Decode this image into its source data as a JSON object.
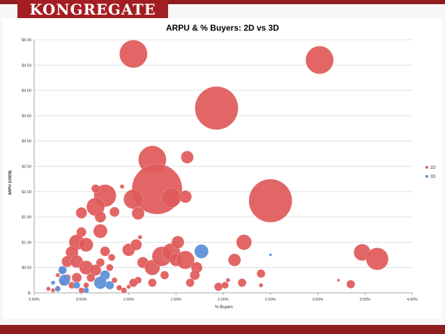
{
  "brand": {
    "logo_text": "KONGREGATE",
    "accent": "#a31e22"
  },
  "chart_data": {
    "type": "bubble",
    "title": "ARPU & % Buyers: 2D vs 3D",
    "xlabel": "% Buyers",
    "ylabel": "ARPU (USD$)",
    "xlim": [
      0,
      4
    ],
    "ylim": [
      0,
      5
    ],
    "grid": true,
    "legend_position": "right",
    "x_ticks": [
      "0.00%",
      "0.50%",
      "1.00%",
      "1.50%",
      "2.00%",
      "2.50%",
      "3.00%",
      "3.50%",
      "4.00%"
    ],
    "y_ticks": [
      "$-",
      "$0.50",
      "$1.00",
      "$1.50",
      "$2.00",
      "$2.50",
      "$3.00",
      "$3.50",
      "$4.00",
      "$4.50",
      "$5.00"
    ],
    "series": [
      {
        "name": "2D",
        "color": "#e05a5a",
        "points": [
          {
            "x": 1.05,
            "y": 4.72,
            "s": 20
          },
          {
            "x": 3.02,
            "y": 4.6,
            "s": 20
          },
          {
            "x": 1.93,
            "y": 3.65,
            "s": 31
          },
          {
            "x": 1.25,
            "y": 2.63,
            "s": 20
          },
          {
            "x": 1.62,
            "y": 2.68,
            "s": 9
          },
          {
            "x": 1.3,
            "y": 2.05,
            "s": 36
          },
          {
            "x": 2.5,
            "y": 1.82,
            "s": 31
          },
          {
            "x": 0.75,
            "y": 1.92,
            "s": 16
          },
          {
            "x": 1.05,
            "y": 1.85,
            "s": 14
          },
          {
            "x": 1.45,
            "y": 1.88,
            "s": 14
          },
          {
            "x": 1.6,
            "y": 1.9,
            "s": 9
          },
          {
            "x": 0.65,
            "y": 1.7,
            "s": 13
          },
          {
            "x": 0.7,
            "y": 1.5,
            "s": 8
          },
          {
            "x": 0.5,
            "y": 1.58,
            "s": 8
          },
          {
            "x": 0.85,
            "y": 1.6,
            "s": 7
          },
          {
            "x": 1.1,
            "y": 1.57,
            "s": 9
          },
          {
            "x": 0.65,
            "y": 2.06,
            "s": 6
          },
          {
            "x": 0.93,
            "y": 2.1,
            "s": 3
          },
          {
            "x": 0.7,
            "y": 1.22,
            "s": 10
          },
          {
            "x": 0.5,
            "y": 1.2,
            "s": 7
          },
          {
            "x": 0.45,
            "y": 1.0,
            "s": 11
          },
          {
            "x": 0.55,
            "y": 0.95,
            "s": 10
          },
          {
            "x": 0.4,
            "y": 0.8,
            "s": 9
          },
          {
            "x": 0.35,
            "y": 0.62,
            "s": 8
          },
          {
            "x": 0.45,
            "y": 0.62,
            "s": 9
          },
          {
            "x": 0.55,
            "y": 0.5,
            "s": 10
          },
          {
            "x": 0.7,
            "y": 0.6,
            "s": 6
          },
          {
            "x": 0.75,
            "y": 0.82,
            "s": 7
          },
          {
            "x": 0.82,
            "y": 0.7,
            "s": 5
          },
          {
            "x": 0.65,
            "y": 0.45,
            "s": 8
          },
          {
            "x": 0.6,
            "y": 0.3,
            "s": 6
          },
          {
            "x": 0.45,
            "y": 0.3,
            "s": 7
          },
          {
            "x": 0.35,
            "y": 0.3,
            "s": 5
          },
          {
            "x": 0.3,
            "y": 0.2,
            "s": 4
          },
          {
            "x": 0.4,
            "y": 0.15,
            "s": 5
          },
          {
            "x": 0.55,
            "y": 0.15,
            "s": 4
          },
          {
            "x": 0.25,
            "y": 0.1,
            "s": 3
          },
          {
            "x": 0.2,
            "y": 0.05,
            "s": 3
          },
          {
            "x": 0.15,
            "y": 0.08,
            "s": 3
          },
          {
            "x": 0.5,
            "y": 0.05,
            "s": 4
          },
          {
            "x": 0.8,
            "y": 0.5,
            "s": 5
          },
          {
            "x": 0.85,
            "y": 0.25,
            "s": 4
          },
          {
            "x": 0.9,
            "y": 0.1,
            "s": 4
          },
          {
            "x": 1.0,
            "y": 0.85,
            "s": 9
          },
          {
            "x": 1.08,
            "y": 0.95,
            "s": 8
          },
          {
            "x": 1.15,
            "y": 0.6,
            "s": 8
          },
          {
            "x": 1.25,
            "y": 0.5,
            "s": 11
          },
          {
            "x": 1.35,
            "y": 0.72,
            "s": 14
          },
          {
            "x": 1.45,
            "y": 0.8,
            "s": 13
          },
          {
            "x": 1.5,
            "y": 0.65,
            "s": 9
          },
          {
            "x": 1.52,
            "y": 1.0,
            "s": 9
          },
          {
            "x": 1.6,
            "y": 0.65,
            "s": 13
          },
          {
            "x": 1.72,
            "y": 0.5,
            "s": 8
          },
          {
            "x": 1.1,
            "y": 0.25,
            "s": 5
          },
          {
            "x": 1.25,
            "y": 0.2,
            "s": 6
          },
          {
            "x": 1.38,
            "y": 0.35,
            "s": 6
          },
          {
            "x": 1.65,
            "y": 0.2,
            "s": 6
          },
          {
            "x": 1.7,
            "y": 0.35,
            "s": 7
          },
          {
            "x": 1.05,
            "y": 0.2,
            "s": 6
          },
          {
            "x": 1.12,
            "y": 1.1,
            "s": 3
          },
          {
            "x": 2.22,
            "y": 1.0,
            "s": 11
          },
          {
            "x": 2.12,
            "y": 0.65,
            "s": 9
          },
          {
            "x": 2.4,
            "y": 0.38,
            "s": 6
          },
          {
            "x": 2.2,
            "y": 0.2,
            "s": 6
          },
          {
            "x": 2.4,
            "y": 0.15,
            "s": 3
          },
          {
            "x": 1.95,
            "y": 0.12,
            "s": 6
          },
          {
            "x": 2.02,
            "y": 0.15,
            "s": 5
          },
          {
            "x": 2.05,
            "y": 0.25,
            "s": 3
          },
          {
            "x": 3.47,
            "y": 0.8,
            "s": 12
          },
          {
            "x": 3.63,
            "y": 0.67,
            "s": 16
          },
          {
            "x": 3.35,
            "y": 0.17,
            "s": 6
          },
          {
            "x": 3.22,
            "y": 0.25,
            "s": 2
          },
          {
            "x": 0.95,
            "y": 0.05,
            "s": 4
          },
          {
            "x": 1.0,
            "y": 0.12,
            "s": 3
          },
          {
            "x": 0.3,
            "y": 0.45,
            "s": 4
          },
          {
            "x": 0.25,
            "y": 0.35,
            "s": 3
          }
        ]
      },
      {
        "name": "3D",
        "color": "#5a8fd8",
        "points": [
          {
            "x": 1.77,
            "y": 0.82,
            "s": 10
          },
          {
            "x": 2.5,
            "y": 0.75,
            "s": 2
          },
          {
            "x": 0.3,
            "y": 0.45,
            "s": 6
          },
          {
            "x": 0.32,
            "y": 0.25,
            "s": 8
          },
          {
            "x": 0.45,
            "y": 0.15,
            "s": 5
          },
          {
            "x": 0.75,
            "y": 0.35,
            "s": 7
          },
          {
            "x": 0.7,
            "y": 0.2,
            "s": 9
          },
          {
            "x": 0.8,
            "y": 0.15,
            "s": 6
          },
          {
            "x": 0.25,
            "y": 0.08,
            "s": 4
          },
          {
            "x": 0.55,
            "y": 0.05,
            "s": 4
          },
          {
            "x": 0.2,
            "y": 0.2,
            "s": 3
          }
        ]
      }
    ]
  }
}
